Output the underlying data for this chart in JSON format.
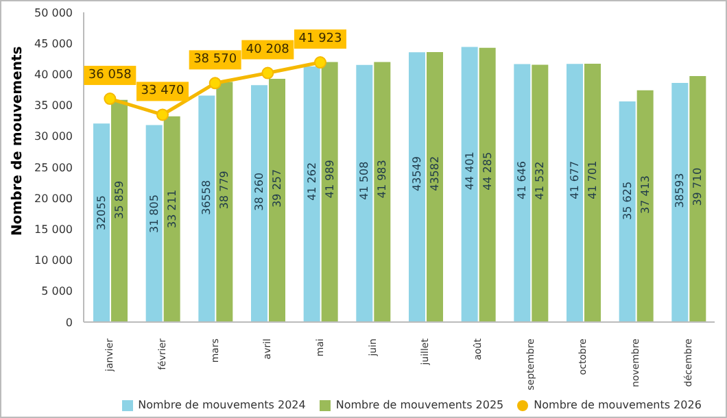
{
  "chart_data": {
    "type": "bar",
    "ylabel": "Nombre de mouvements",
    "categories": [
      "janvier",
      "février",
      "mars",
      "avril",
      "mai",
      "juin",
      "juillet",
      "août",
      "septembre",
      "octobre",
      "novembre",
      "décembre"
    ],
    "series": [
      {
        "name": "Nombre de mouvements 2024",
        "color": "#8ed3e6",
        "values": [
          32055,
          31805,
          36558,
          38260,
          41262,
          41508,
          43549,
          44401,
          41646,
          41677,
          35625,
          38593
        ],
        "value_labels": [
          "32055",
          "31 805",
          "36558",
          "38 260",
          "41 262",
          "41 508",
          "43549",
          "44 401",
          "41 646",
          "41 677",
          "35 625",
          "38593"
        ]
      },
      {
        "name": "Nombre de mouvements 2025",
        "color": "#9bbb59",
        "values": [
          35859,
          33211,
          38779,
          39257,
          41989,
          41983,
          43582,
          44285,
          41532,
          41701,
          37413,
          39710
        ],
        "value_labels": [
          "35 859",
          "33 211",
          "38 779",
          "39 257",
          "41 989",
          "41 983",
          "43582",
          "44 285",
          "41 532",
          "41 701",
          "37 413",
          "39 710"
        ]
      },
      {
        "name": "Nombre de mouvements 2026",
        "type": "line",
        "color": "#f5b800",
        "marker": "circle",
        "values": [
          36058,
          33470,
          38570,
          40208,
          41923,
          null,
          null,
          null,
          null,
          null,
          null,
          null
        ],
        "value_labels": [
          "36 058",
          "33 470",
          "38 570",
          "40 208",
          "41 923",
          null,
          null,
          null,
          null,
          null,
          null,
          null
        ]
      }
    ],
    "ylim": [
      0,
      50000
    ],
    "yticks": [
      {
        "value": 0,
        "label": "0"
      },
      {
        "value": 5000,
        "label": "5 000"
      },
      {
        "value": 10000,
        "label": "10 000"
      },
      {
        "value": 15000,
        "label": "15 000"
      },
      {
        "value": 20000,
        "label": "20 000"
      },
      {
        "value": 25000,
        "label": "25 000"
      },
      {
        "value": 30000,
        "label": "30 000"
      },
      {
        "value": 35000,
        "label": "35 000"
      },
      {
        "value": 40000,
        "label": "40 000"
      },
      {
        "value": 45000,
        "label": "45 000"
      },
      {
        "value": 50000,
        "label": "50 000"
      }
    ],
    "grid": false,
    "legend": "bottom"
  }
}
